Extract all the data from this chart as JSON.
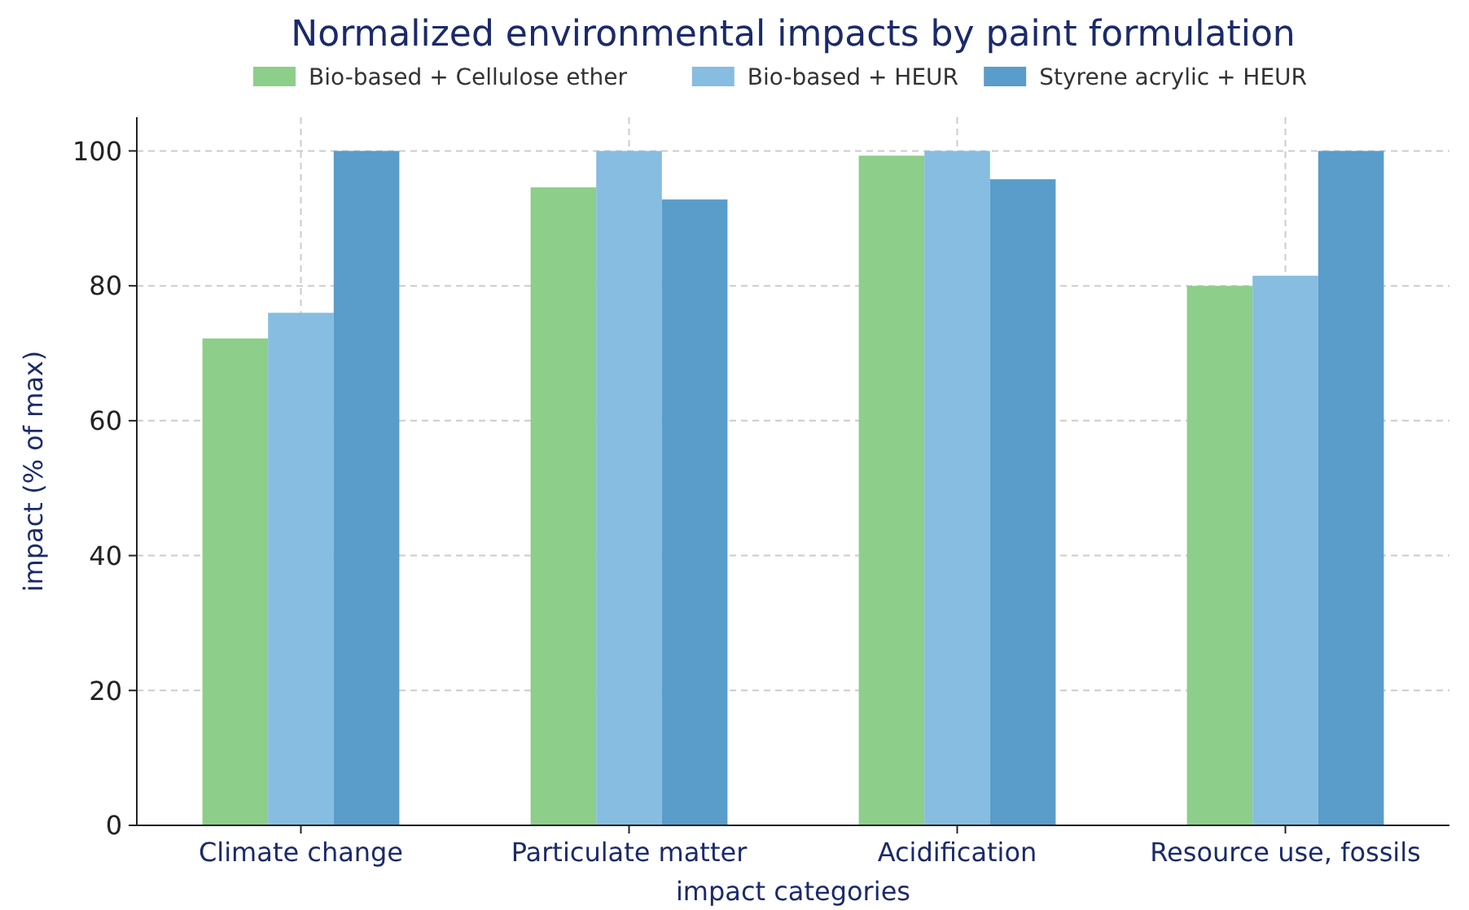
{
  "chart_data": {
    "type": "bar",
    "title": "Normalized environmental impacts by paint formulation",
    "xlabel": "impact categories",
    "ylabel": "impact (% of max)",
    "categories": [
      "Climate change",
      "Particulate matter",
      "Acidification",
      "Resource use, fossils"
    ],
    "series": [
      {
        "name": "Bio-based + Cellulose ether",
        "color": "#8dce8b",
        "values": [
          72.2,
          94.6,
          99.3,
          80
        ]
      },
      {
        "name": "Bio-based + HEUR",
        "color": "#86bde0",
        "values": [
          76,
          100,
          100,
          81.5
        ]
      },
      {
        "name": "Styrene acrylic + HEUR",
        "color": "#5a9cca",
        "values": [
          100,
          92.8,
          95.8,
          100
        ]
      }
    ],
    "ylim": [
      0,
      105
    ],
    "yticks": [
      0,
      20,
      40,
      60,
      80,
      100
    ],
    "grid": true,
    "legend": "top"
  }
}
